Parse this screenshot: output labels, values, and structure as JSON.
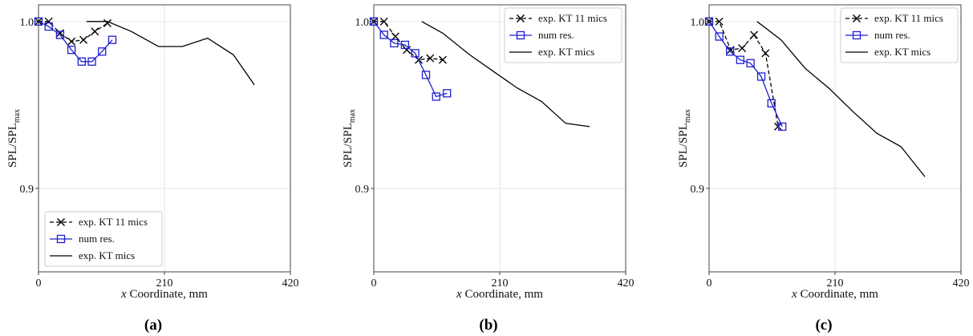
{
  "colors": {
    "exp11": "#000000",
    "num": "#1f1fd0",
    "expKT": "#000000",
    "grid": "#e6e6e6",
    "axes": "#444444"
  },
  "chart_data": [
    {
      "type": "line",
      "panel_label": "(a)",
      "xlabel": "Coordinate, mm",
      "xlabel_var": "x",
      "ylabel": "SPL/SPL",
      "ylabel_sub": "max",
      "xlim": [
        0,
        420
      ],
      "ylim": [
        0.85,
        1.01
      ],
      "xticks": [
        0,
        210,
        420
      ],
      "yticks": [
        0.9,
        1.0
      ],
      "xtick_labels": [
        "0",
        "210",
        "420"
      ],
      "ytick_labels": [
        "0.9",
        "1.0"
      ],
      "legend_position": "lower-left",
      "series": [
        {
          "name": "exp. KT 11 mics",
          "style": "dashed-x",
          "x": [
            0,
            17,
            36,
            55,
            75,
            94,
            115
          ],
          "y": [
            1.0,
            1.0,
            0.993,
            0.988,
            0.989,
            0.994,
            0.999
          ]
        },
        {
          "name": "num res.",
          "style": "solid-square",
          "x": [
            0,
            17,
            36,
            55,
            72,
            89,
            106,
            123
          ],
          "y": [
            1.0,
            0.997,
            0.992,
            0.983,
            0.976,
            0.976,
            0.982,
            0.989
          ]
        },
        {
          "name": "exp. KT mics",
          "style": "solid",
          "x": [
            80,
            115,
            155,
            200,
            240,
            282,
            325,
            360
          ],
          "y": [
            1.0,
            1.0,
            0.994,
            0.985,
            0.985,
            0.99,
            0.98,
            0.962
          ]
        }
      ]
    },
    {
      "type": "line",
      "panel_label": "(b)",
      "xlabel": "Coordinate, mm",
      "xlabel_var": "x",
      "ylabel": "SPL/SPL",
      "ylabel_sub": "max",
      "xlim": [
        0,
        420
      ],
      "ylim": [
        0.85,
        1.01
      ],
      "xticks": [
        0,
        210,
        420
      ],
      "yticks": [
        0.9,
        1.0
      ],
      "xtick_labels": [
        "0",
        "210",
        "420"
      ],
      "ytick_labels": [
        "0.9",
        "1.0"
      ],
      "legend_position": "top-right",
      "series": [
        {
          "name": "exp. KT 11 mics",
          "style": "dashed-x",
          "x": [
            0,
            17,
            36,
            55,
            75,
            94,
            115
          ],
          "y": [
            1.0,
            1.0,
            0.991,
            0.983,
            0.977,
            0.978,
            0.977
          ]
        },
        {
          "name": "num res.",
          "style": "solid-square",
          "x": [
            0,
            17,
            34,
            52,
            69,
            87,
            104,
            122
          ],
          "y": [
            1.0,
            0.992,
            0.987,
            0.986,
            0.981,
            0.968,
            0.955,
            0.957
          ]
        },
        {
          "name": "exp. KT mics",
          "style": "solid",
          "x": [
            80,
            115,
            160,
            200,
            240,
            280,
            320,
            360
          ],
          "y": [
            1.0,
            0.993,
            0.98,
            0.97,
            0.96,
            0.952,
            0.939,
            0.937
          ]
        }
      ]
    },
    {
      "type": "line",
      "panel_label": "(c)",
      "xlabel": "Coordinate, mm",
      "xlabel_var": "x",
      "ylabel": "SPL/SPL",
      "ylabel_sub": "max",
      "xlim": [
        0,
        420
      ],
      "ylim": [
        0.85,
        1.01
      ],
      "xticks": [
        0,
        210,
        420
      ],
      "yticks": [
        0.9,
        1.0
      ],
      "xtick_labels": [
        "0",
        "210",
        "420"
      ],
      "ytick_labels": [
        "0.9",
        "1.0"
      ],
      "legend_position": "top-right",
      "series": [
        {
          "name": "exp. KT 11 mics",
          "style": "dashed-x",
          "x": [
            0,
            17,
            36,
            55,
            75,
            94,
            115
          ],
          "y": [
            1.0,
            1.0,
            0.983,
            0.984,
            0.992,
            0.981,
            0.937
          ]
        },
        {
          "name": "num res.",
          "style": "solid-square",
          "x": [
            0,
            17,
            35,
            52,
            69,
            87,
            104,
            122
          ],
          "y": [
            1.0,
            0.991,
            0.982,
            0.977,
            0.975,
            0.967,
            0.951,
            0.937
          ]
        },
        {
          "name": "exp. KT mics",
          "style": "solid",
          "x": [
            80,
            120,
            160,
            200,
            240,
            280,
            320,
            360
          ],
          "y": [
            1.0,
            0.989,
            0.972,
            0.96,
            0.946,
            0.933,
            0.925,
            0.907
          ]
        }
      ]
    }
  ]
}
